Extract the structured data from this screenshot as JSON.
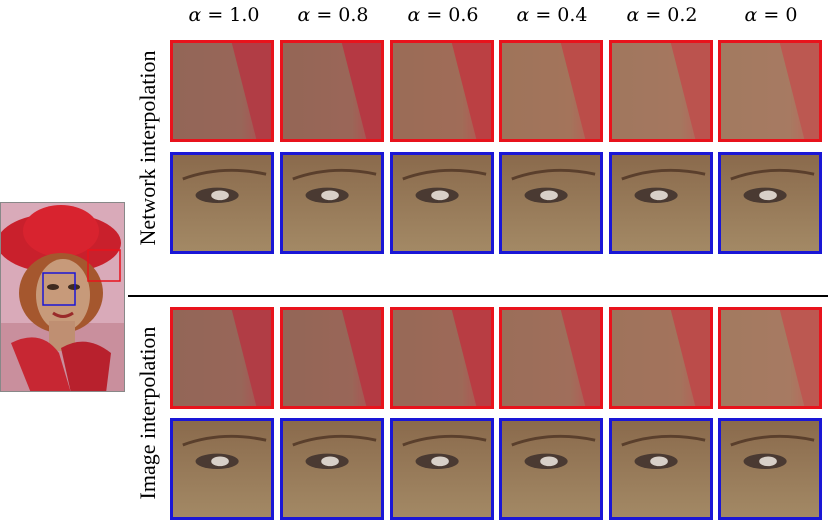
{
  "column_headers": [
    {
      "symbol": "α",
      "value": "= 1.0"
    },
    {
      "symbol": "α",
      "value": "= 0.8"
    },
    {
      "symbol": "α",
      "value": "= 0.6"
    },
    {
      "symbol": "α",
      "value": "= 0.4"
    },
    {
      "symbol": "α",
      "value": "= 0.2"
    },
    {
      "symbol": "α",
      "value": "= 0"
    }
  ],
  "row_groups": [
    {
      "label": "Network interpolation"
    },
    {
      "label": "Image interpolation"
    }
  ],
  "colors": {
    "red_box": "#e8131c",
    "blue_box": "#1a16d6",
    "divider": "#000000"
  }
}
